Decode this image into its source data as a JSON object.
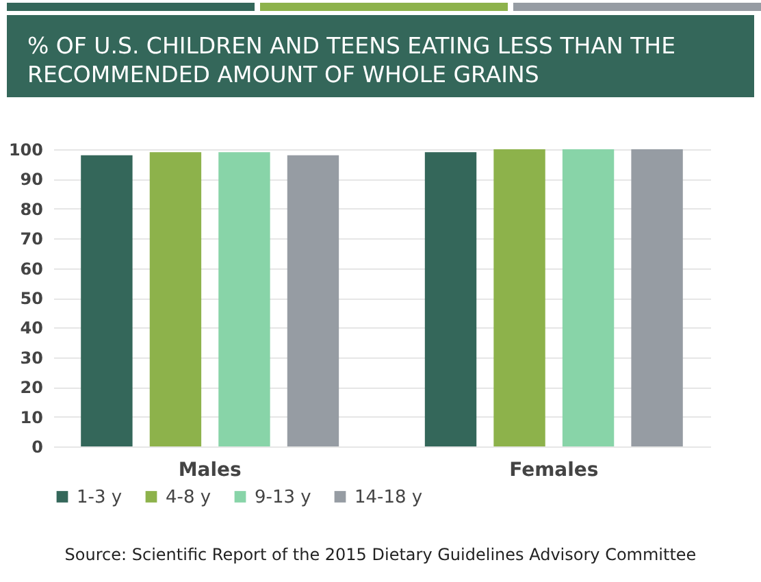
{
  "chart_data": {
    "type": "bar",
    "title": "% OF U.S. CHILDREN AND TEENS EATING LESS THAN THE RECOMMENDED AMOUNT OF WHOLE GRAINS",
    "categories": [
      "Males",
      "Females"
    ],
    "series": [
      {
        "name": "1-3 y",
        "color": "#34675a",
        "values": [
          98,
          99
        ]
      },
      {
        "name": "4-8 y",
        "color": "#8db24b",
        "values": [
          99,
          100
        ]
      },
      {
        "name": "9-13 y",
        "color": "#88d4a8",
        "values": [
          99,
          100
        ]
      },
      {
        "name": "14-18 y",
        "color": "#969ca3",
        "values": [
          98,
          100
        ]
      }
    ],
    "ylim": [
      0,
      100
    ],
    "yticks": [
      0,
      10,
      20,
      30,
      40,
      50,
      60,
      70,
      80,
      90,
      100
    ],
    "grid": "y",
    "legend": "bottom",
    "annotations": [
      "Source: Scientific Report of the 2015 Dietary Guidelines Advisory Committee"
    ]
  }
}
